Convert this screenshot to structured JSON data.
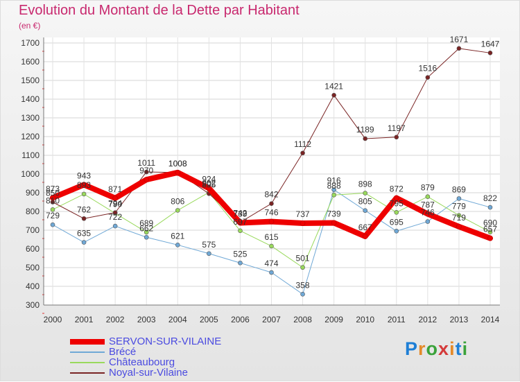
{
  "title": "Evolution du Montant de la Dette par Habitant",
  "subtitle": "(en €)",
  "logo": "Proxiti",
  "chart_data": {
    "type": "line",
    "title": "Evolution du Montant de la Dette par Habitant",
    "ylabel": "(en €)",
    "xlabel": "",
    "ylim": [
      300,
      1700
    ],
    "yticks": [
      300,
      400,
      500,
      600,
      700,
      800,
      900,
      1000,
      1100,
      1200,
      1300,
      1400,
      1500,
      1600,
      1700
    ],
    "grid": true,
    "legend_position": "bottom-left",
    "categories": [
      "2000",
      "2001",
      "2002",
      "2003",
      "2004",
      "2005",
      "2006",
      "2007",
      "2008",
      "2009",
      "2010",
      "2011",
      "2012",
      "2013",
      "2014"
    ],
    "series": [
      {
        "name": "SERVON-SUR-VILAINE",
        "color": "#ee0000",
        "width": 8,
        "values": [
          873,
          943,
          871,
          970,
          1008,
          924,
          739,
          746,
          737,
          739,
          667,
          872,
          787,
          719,
          657
        ]
      },
      {
        "name": "Brécé",
        "color": "#6fa8d6",
        "width": 1,
        "values": [
          729,
          635,
          722,
          662,
          621,
          575,
          525,
          474,
          358,
          916,
          805,
          695,
          746,
          869,
          822
        ]
      },
      {
        "name": "Châteaubourg",
        "color": "#99d95c",
        "width": 1,
        "values": [
          810,
          893,
          790,
          689,
          806,
          902,
          697,
          615,
          501,
          888,
          898,
          795,
          879,
          779,
          690
        ]
      },
      {
        "name": "Noyal-sur-Vilaine",
        "color": "#7a2424",
        "width": 1,
        "values": [
          850,
          762,
          794,
          1011,
          1008,
          895,
          742,
          842,
          1112,
          1421,
          1189,
          1197,
          1516,
          1671,
          1647
        ]
      }
    ]
  }
}
